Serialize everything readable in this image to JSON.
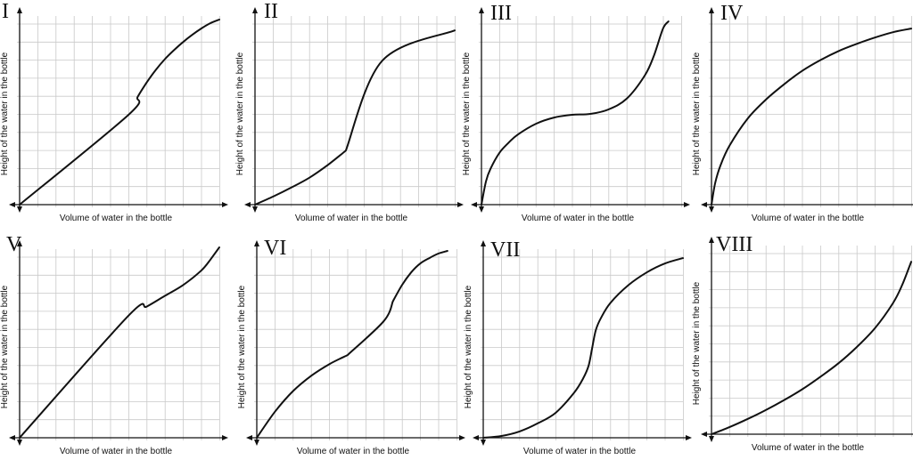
{
  "chart_data": [
    {
      "type": "line",
      "title": "I",
      "xlabel": "Volume of water in the bottle",
      "ylabel": "Height of the water in the bottle",
      "xlim": [
        0,
        11
      ],
      "ylim": [
        0,
        10.5
      ],
      "grid": true,
      "series": [
        {
          "x": [
            0,
            6,
            6.5,
            7,
            7.5,
            8,
            8.5,
            9,
            9.5,
            10,
            10.5,
            11
          ],
          "y": [
            0,
            5,
            6,
            6.8,
            7.5,
            8.1,
            8.6,
            9.05,
            9.45,
            9.8,
            10.1,
            10.3
          ]
        }
      ]
    },
    {
      "type": "line",
      "title": "II",
      "xlabel": "Volume of water in the bottle",
      "ylabel": "Height of the water in the bottle",
      "xlim": [
        0,
        11
      ],
      "ylim": [
        0,
        10.5
      ],
      "grid": true,
      "series": [
        {
          "x": [
            0,
            1,
            2,
            3,
            4,
            5,
            7,
            11
          ],
          "y": [
            0,
            0.45,
            0.95,
            1.5,
            2.2,
            3,
            8,
            9.7
          ]
        }
      ]
    },
    {
      "type": "line",
      "title": "III",
      "xlabel": "Volume of water in the bottle",
      "ylabel": "Height of the water in the bottle",
      "xlim": [
        0,
        11
      ],
      "ylim": [
        0,
        10.5
      ],
      "grid": true,
      "series": [
        {
          "x": [
            0,
            0.25,
            0.5,
            1,
            1.5,
            2,
            3,
            4,
            5,
            6,
            7,
            8,
            9,
            9.5,
            10,
            10.3
          ],
          "y": [
            0,
            1.3,
            2,
            2.9,
            3.45,
            3.9,
            4.5,
            4.85,
            5,
            5.05,
            5.3,
            5.9,
            7.2,
            8.3,
            9.8,
            10.2
          ]
        }
      ]
    },
    {
      "type": "line",
      "title": "IV",
      "xlabel": "Volume of water in the bottle",
      "ylabel": "Height of the water in the bottle",
      "xlim": [
        0,
        11
      ],
      "ylim": [
        0,
        10.5
      ],
      "grid": true,
      "series": [
        {
          "x": [
            0,
            0.2,
            0.5,
            1,
            2,
            3,
            4,
            5,
            6,
            7,
            8,
            9,
            10,
            11
          ],
          "y": [
            0,
            1.2,
            2.2,
            3.3,
            4.8,
            5.85,
            6.7,
            7.45,
            8.05,
            8.55,
            8.95,
            9.3,
            9.6,
            9.8
          ]
        }
      ]
    },
    {
      "type": "line",
      "title": "V",
      "xlabel": "Volume of water in the bottle",
      "ylabel": "Height of the water in the bottle",
      "xlim": [
        0,
        11
      ],
      "ylim": [
        0,
        10.5
      ],
      "grid": true,
      "series": [
        {
          "x": [
            0,
            6,
            7,
            8,
            9,
            10,
            10.5,
            11
          ],
          "y": [
            0,
            6.8,
            7.3,
            7.9,
            8.5,
            9.3,
            9.9,
            10.6
          ]
        }
      ]
    },
    {
      "type": "line",
      "title": "VI",
      "xlabel": "Volume of water in the bottle",
      "ylabel": "Height of the water in the bottle",
      "xlim": [
        0,
        11
      ],
      "ylim": [
        0,
        10.5
      ],
      "grid": true,
      "series": [
        {
          "x": [
            0,
            1,
            2,
            3,
            4,
            5,
            7,
            7.5,
            8,
            8.5,
            9,
            9.5,
            10,
            10.5
          ],
          "y": [
            0,
            1.45,
            2.6,
            3.45,
            4.1,
            4.6,
            6.5,
            7.6,
            8.5,
            9.2,
            9.7,
            10,
            10.25,
            10.4
          ]
        }
      ]
    },
    {
      "type": "line",
      "title": "VII",
      "xlabel": "Volume of water in the bottle",
      "ylabel": "Height of the water in the bottle",
      "xlim": [
        0,
        11
      ],
      "ylim": [
        0,
        10.5
      ],
      "grid": true,
      "series": [
        {
          "x": [
            0,
            1,
            2,
            3,
            4,
            5,
            5.5,
            5.8,
            6,
            6.2,
            6.5,
            7,
            8,
            9,
            10,
            11
          ],
          "y": [
            0,
            0.1,
            0.35,
            0.8,
            1.4,
            2.5,
            3.3,
            4,
            5,
            6,
            6.7,
            7.5,
            8.5,
            9.2,
            9.7,
            10
          ]
        }
      ]
    },
    {
      "type": "line",
      "title": "VIII",
      "xlabel": "Volume of water in the bottle",
      "ylabel": "Height of the water in the bottle",
      "xlim": [
        0,
        11
      ],
      "ylim": [
        0,
        10.5
      ],
      "grid": true,
      "series": [
        {
          "x": [
            0,
            1,
            2,
            3,
            4,
            5,
            6,
            7,
            8,
            9,
            10,
            10.5,
            11
          ],
          "y": [
            0,
            0.4,
            0.85,
            1.35,
            1.9,
            2.5,
            3.2,
            3.95,
            4.85,
            5.9,
            7.3,
            8.3,
            9.6
          ]
        }
      ]
    }
  ]
}
